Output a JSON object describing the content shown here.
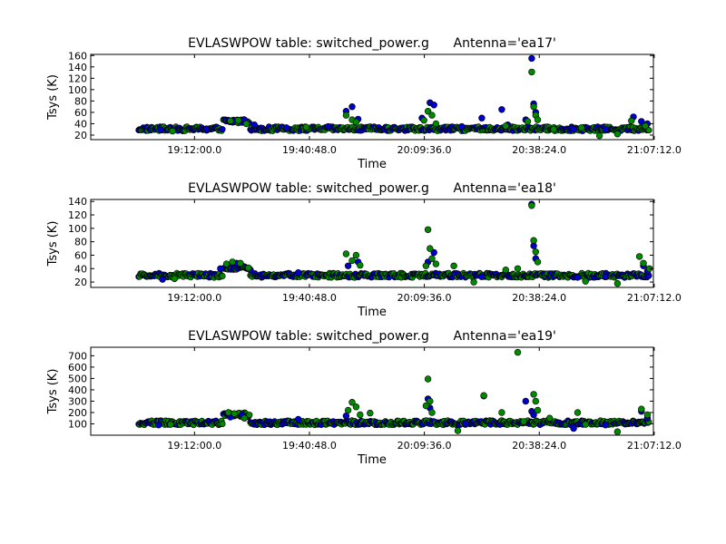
{
  "colors": {
    "series_a": "#0000cc",
    "series_b": "#008800",
    "marker_edge": "#000000",
    "axes_frame": "#000000",
    "background": "#ffffff"
  },
  "chart_data": [
    {
      "type": "scatter",
      "title": "EVLASWPOW table: switched_power.g      Antenna='ea17'",
      "xlabel": "Time",
      "ylabel": "Tsys (K)",
      "x_ticks": [
        "19:12:00.0",
        "19:40:48.0",
        "20:09:36.0",
        "20:38:24.0",
        "21:07:12.0"
      ],
      "y_ticks": [
        20,
        40,
        60,
        80,
        100,
        120,
        140,
        160
      ],
      "xlim_seconds": [
        67560,
        76020
      ],
      "xlim": [
        "18:46:00",
        "21:07:00"
      ],
      "ylim": [
        12,
        162
      ],
      "baseline": 31,
      "grid": false,
      "series": [
        {
          "color": "blue",
          "points": [
            [
              "19:03:30",
              29
            ],
            [
              "19:15:00",
              31
            ],
            [
              "19:21:30",
              44
            ],
            [
              "19:24:30",
              47
            ],
            [
              "19:27:00",
              38
            ],
            [
              "19:35:00",
              33
            ],
            [
              "19:45:30",
              35
            ],
            [
              "19:50:00",
              62
            ],
            [
              "19:51:30",
              70
            ],
            [
              "19:53:00",
              48
            ],
            [
              "20:09:00",
              50
            ],
            [
              "20:11:00",
              77
            ],
            [
              "20:12:00",
              73
            ],
            [
              "20:19:00",
              35
            ],
            [
              "20:24:00",
              50
            ],
            [
              "20:29:00",
              65
            ],
            [
              "20:30:30",
              38
            ],
            [
              "20:35:00",
              47
            ],
            [
              "20:36:30",
              155
            ],
            [
              "20:37:00",
              75
            ],
            [
              "20:37:30",
              60
            ],
            [
              "20:47:00",
              30
            ],
            [
              "20:55:00",
              30
            ],
            [
              "21:02:00",
              52
            ],
            [
              "21:04:00",
              44
            ],
            [
              "21:05:30",
              40
            ]
          ]
        },
        {
          "color": "green",
          "points": [
            [
              "19:06:30",
              27
            ],
            [
              "19:21:00",
              45
            ],
            [
              "19:23:00",
              46
            ],
            [
              "19:25:00",
              40
            ],
            [
              "19:40:00",
              34
            ],
            [
              "19:50:00",
              55
            ],
            [
              "19:51:30",
              47
            ],
            [
              "19:52:30",
              43
            ],
            [
              "20:09:30",
              46
            ],
            [
              "20:10:30",
              62
            ],
            [
              "20:11:30",
              55
            ],
            [
              "20:12:30",
              40
            ],
            [
              "20:30:00",
              36
            ],
            [
              "20:35:30",
              44
            ],
            [
              "20:36:30",
              131
            ],
            [
              "20:37:00",
              70
            ],
            [
              "20:37:30",
              55
            ],
            [
              "20:38:00",
              47
            ],
            [
              "20:42:00",
              30
            ],
            [
              "20:49:00",
              33
            ],
            [
              "20:53:30",
              19
            ],
            [
              "20:58:00",
              22
            ],
            [
              "21:01:30",
              45
            ],
            [
              "21:05:00",
              36
            ]
          ]
        }
      ]
    },
    {
      "type": "scatter",
      "title": "EVLASWPOW table: switched_power.g      Antenna='ea18'",
      "xlabel": "Time",
      "ylabel": "Tsys (K)",
      "x_ticks": [
        "19:12:00.0",
        "19:40:48.0",
        "20:09:36.0",
        "20:38:24.0",
        "21:07:12.0"
      ],
      "y_ticks": [
        20,
        40,
        60,
        80,
        100,
        120,
        140
      ],
      "xlim_seconds": [
        67560,
        76020
      ],
      "xlim": [
        "18:46:00",
        "21:07:00"
      ],
      "ylim": [
        12,
        143
      ],
      "baseline": 30,
      "grid": false,
      "series": [
        {
          "color": "blue",
          "points": [
            [
              "19:04:00",
              24
            ],
            [
              "19:18:30",
              40
            ],
            [
              "19:22:30",
              48
            ],
            [
              "19:26:00",
              38
            ],
            [
              "19:38:00",
              34
            ],
            [
              "19:50:30",
              44
            ],
            [
              "19:53:00",
              50
            ],
            [
              "20:10:30",
              50
            ],
            [
              "20:12:00",
              64
            ],
            [
              "20:24:00",
              28
            ],
            [
              "20:36:30",
              136
            ],
            [
              "20:37:00",
              74
            ],
            [
              "20:37:30",
              55
            ],
            [
              "20:48:00",
              27
            ],
            [
              "20:55:00",
              28
            ],
            [
              "21:04:30",
              44
            ],
            [
              "21:05:30",
              36
            ]
          ]
        },
        {
          "color": "green",
          "points": [
            [
              "19:07:00",
              25
            ],
            [
              "19:20:00",
              47
            ],
            [
              "19:21:30",
              50
            ],
            [
              "19:23:30",
              48
            ],
            [
              "19:25:30",
              41
            ],
            [
              "19:50:00",
              62
            ],
            [
              "19:51:30",
              52
            ],
            [
              "19:52:30",
              60
            ],
            [
              "19:53:30",
              45
            ],
            [
              "20:10:00",
              44
            ],
            [
              "20:10:30",
              98
            ],
            [
              "20:11:00",
              70
            ],
            [
              "20:11:30",
              55
            ],
            [
              "20:12:30",
              47
            ],
            [
              "20:17:00",
              44
            ],
            [
              "20:22:00",
              20
            ],
            [
              "20:30:00",
              38
            ],
            [
              "20:33:00",
              40
            ],
            [
              "20:36:30",
              134
            ],
            [
              "20:37:00",
              82
            ],
            [
              "20:37:30",
              65
            ],
            [
              "20:38:00",
              50
            ],
            [
              "20:50:00",
              21
            ],
            [
              "20:58:00",
              18
            ],
            [
              "21:03:30",
              58
            ],
            [
              "21:04:30",
              48
            ],
            [
              "21:06:00",
              40
            ]
          ]
        }
      ]
    },
    {
      "type": "scatter",
      "title": "EVLASWPOW table: switched_power.g      Antenna='ea19'",
      "xlabel": "Time",
      "ylabel": "Tsys (K)",
      "x_ticks": [
        "19:12:00.0",
        "19:40:48.0",
        "20:09:36.0",
        "20:38:24.0",
        "21:07:12.0"
      ],
      "y_ticks": [
        100,
        200,
        300,
        400,
        500,
        600,
        700
      ],
      "xlim_seconds": [
        67560,
        76020
      ],
      "xlim": [
        "18:46:00",
        "21:07:00"
      ],
      "ylim": [
        0,
        775
      ],
      "baseline": 110,
      "grid": false,
      "series": [
        {
          "color": "blue",
          "points": [
            [
              "19:03:00",
              90
            ],
            [
              "19:21:00",
              160
            ],
            [
              "19:24:00",
              180
            ],
            [
              "19:38:00",
              140
            ],
            [
              "19:50:00",
              170
            ],
            [
              "20:10:30",
              320
            ],
            [
              "20:11:00",
              240
            ],
            [
              "20:20:00",
              100
            ],
            [
              "20:24:30",
              345
            ],
            [
              "20:35:00",
              300
            ],
            [
              "20:36:30",
              210
            ],
            [
              "20:37:00",
              180
            ],
            [
              "20:47:00",
              60
            ],
            [
              "20:55:00",
              90
            ],
            [
              "21:04:00",
              210
            ],
            [
              "21:05:30",
              150
            ]
          ]
        },
        {
          "color": "green",
          "points": [
            [
              "19:06:00",
              95
            ],
            [
              "19:20:30",
              200
            ],
            [
              "19:22:00",
              190
            ],
            [
              "19:24:30",
              150
            ],
            [
              "19:50:30",
              220
            ],
            [
              "19:51:30",
              290
            ],
            [
              "19:52:30",
              250
            ],
            [
              "19:53:30",
              180
            ],
            [
              "19:56:00",
              195
            ],
            [
              "20:10:00",
              260
            ],
            [
              "20:10:30",
              495
            ],
            [
              "20:11:00",
              300
            ],
            [
              "20:11:30",
              200
            ],
            [
              "20:18:00",
              40
            ],
            [
              "20:24:30",
              350
            ],
            [
              "20:29:00",
              200
            ],
            [
              "20:33:00",
              730
            ],
            [
              "20:34:30",
              120
            ],
            [
              "20:37:00",
              360
            ],
            [
              "20:37:30",
              300
            ],
            [
              "20:38:00",
              220
            ],
            [
              "20:41:00",
              150
            ],
            [
              "20:48:00",
              200
            ],
            [
              "20:50:00",
              95
            ],
            [
              "20:58:00",
              30
            ],
            [
              "21:04:00",
              230
            ],
            [
              "21:05:30",
              180
            ]
          ]
        }
      ]
    }
  ]
}
